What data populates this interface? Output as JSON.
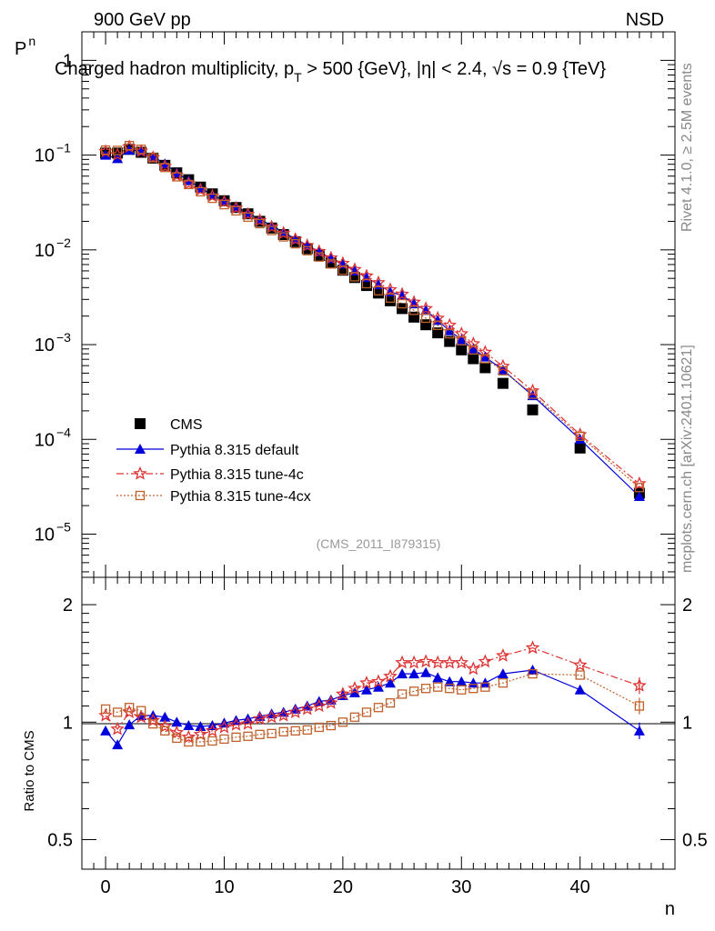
{
  "header": {
    "left": "900 GeV pp",
    "right": "NSD",
    "title": "Charged hadron multiplicity, p",
    "title_sub": "T",
    "title_rest": " > 500 {GeV}, |η| < 2.4, √s = 0.9 {TeV}",
    "analysis_tag": "(CMS_2011_I879315)"
  },
  "side_text": {
    "rivet": "Rivet 4.1.0, ≥ 2.5M events",
    "mcplots": "mcplots.cern.ch [arXiv:2401.10621]"
  },
  "colors": {
    "cms": "#000000",
    "default": "#0000dd",
    "tune4c": "#dd3333",
    "tune4cx": "#c0602a"
  },
  "chart_data": [
    {
      "type": "scatter",
      "title": "Charged hadron multiplicity",
      "xlabel": "n",
      "ylabel": "P",
      "ylabel_sub": "n",
      "yscale": "log",
      "xlim": [
        -2,
        48
      ],
      "ylim": [
        3.5e-06,
        2
      ],
      "ytick_labels": [
        "10",
        "10",
        "10",
        "10",
        "10",
        "1"
      ],
      "ytick_exponents": [
        "−5",
        "−4",
        "−3",
        "−2",
        "−1",
        ""
      ],
      "legend": [
        "CMS",
        "Pythia 8.315 default",
        "Pythia 8.315 tune-4c",
        "Pythia 8.315 tune-4cx"
      ],
      "x": [
        0,
        1,
        2,
        3,
        4,
        5,
        6,
        7,
        8,
        9,
        10,
        11,
        12,
        13,
        14,
        15,
        16,
        17,
        18,
        19,
        20,
        21,
        22,
        23,
        24,
        25,
        26,
        27,
        28,
        29,
        30,
        31,
        32,
        33.5,
        36,
        40,
        45
      ],
      "series": [
        {
          "name": "CMS",
          "values": [
            0.105,
            0.105,
            0.115,
            0.107,
            0.093,
            0.078,
            0.065,
            0.055,
            0.046,
            0.039,
            0.033,
            0.028,
            0.024,
            0.02,
            0.017,
            0.0145,
            0.0122,
            0.0103,
            0.0087,
            0.0073,
            0.0061,
            0.0051,
            0.0042,
            0.0035,
            0.0029,
            0.0024,
            0.00195,
            0.00162,
            0.00133,
            0.00108,
            0.00088,
            0.00071,
            0.00057,
            0.00039,
            0.000205,
            8.1e-05,
            2.7e-05
          ]
        },
        {
          "name": "Pythia 8.315 default",
          "values": [
            0.1,
            0.092,
            0.113,
            0.111,
            0.097,
            0.081,
            0.065,
            0.054,
            0.045,
            0.038,
            0.033,
            0.0285,
            0.0245,
            0.021,
            0.018,
            0.0154,
            0.013,
            0.0112,
            0.0096,
            0.0081,
            0.0071,
            0.006,
            0.0051,
            0.0043,
            0.0036,
            0.0033,
            0.0027,
            0.0023,
            0.0018,
            0.0014,
            0.00113,
            0.0009,
            0.00074,
            0.00054,
            0.00029,
            0.0001,
            2.5e-05
          ]
        },
        {
          "name": "Pythia 8.315 tune-4c",
          "values": [
            0.109,
            0.101,
            0.122,
            0.11,
            0.094,
            0.076,
            0.061,
            0.05,
            0.043,
            0.037,
            0.032,
            0.0276,
            0.0237,
            0.0204,
            0.0174,
            0.015,
            0.0129,
            0.0111,
            0.0096,
            0.0082,
            0.0072,
            0.0062,
            0.0053,
            0.0045,
            0.0038,
            0.0034,
            0.0028,
            0.0024,
            0.0019,
            0.0016,
            0.0013,
            0.00102,
            0.00083,
            0.00059,
            0.000325,
            0.000112,
            3.4e-05
          ]
        },
        {
          "name": "Pythia 8.315 tune-4cx",
          "values": [
            0.113,
            0.112,
            0.126,
            0.115,
            0.094,
            0.074,
            0.059,
            0.049,
            0.041,
            0.035,
            0.03,
            0.0258,
            0.0221,
            0.0189,
            0.016,
            0.0137,
            0.0116,
            0.0098,
            0.0084,
            0.0071,
            0.0061,
            0.0052,
            0.0044,
            0.0037,
            0.0031,
            0.0027,
            0.0023,
            0.0019,
            0.0016,
            0.0013,
            0.0011,
            0.00088,
            0.00071,
            0.00053,
            0.0003,
            0.000108,
            3.1e-05
          ]
        }
      ]
    },
    {
      "type": "scatter",
      "title": "",
      "xlabel": "n",
      "ylabel": "Ratio to CMS",
      "yscale": "log",
      "ylim": [
        0.42,
        2.35
      ],
      "yticks": [
        0.5,
        1,
        2
      ],
      "ytick_labels": [
        "0.5",
        "1",
        "2"
      ],
      "xticks": [
        0,
        10,
        20,
        30,
        40
      ],
      "xtick_labels": [
        "0",
        "10",
        "20",
        "30",
        "40"
      ],
      "x": [
        0,
        1,
        2,
        3,
        4,
        5,
        6,
        7,
        8,
        9,
        10,
        11,
        12,
        13,
        14,
        15,
        16,
        17,
        18,
        19,
        20,
        21,
        22,
        23,
        24,
        25,
        26,
        27,
        28,
        29,
        30,
        31,
        32,
        33.5,
        36,
        40,
        45
      ],
      "series": [
        {
          "name": "Pythia 8.315 default",
          "values": [
            0.95,
            0.875,
            0.985,
            1.04,
            1.04,
            1.03,
            1.0,
            0.98,
            0.975,
            0.98,
            0.995,
            1.01,
            1.02,
            1.035,
            1.05,
            1.06,
            1.08,
            1.1,
            1.13,
            1.14,
            1.17,
            1.19,
            1.21,
            1.23,
            1.26,
            1.33,
            1.33,
            1.34,
            1.3,
            1.27,
            1.27,
            1.26,
            1.26,
            1.33,
            1.36,
            1.21,
            0.95
          ]
        },
        {
          "name": "Pythia 8.315 tune-4c",
          "values": [
            1.04,
            0.96,
            1.06,
            1.03,
            1.01,
            0.975,
            0.94,
            0.915,
            0.93,
            0.95,
            0.97,
            0.985,
            0.99,
            1.02,
            1.03,
            1.04,
            1.06,
            1.08,
            1.1,
            1.12,
            1.18,
            1.22,
            1.26,
            1.27,
            1.31,
            1.42,
            1.42,
            1.43,
            1.42,
            1.42,
            1.42,
            1.37,
            1.43,
            1.48,
            1.55,
            1.4,
            1.24
          ]
        },
        {
          "name": "Pythia 8.315 tune-4cx",
          "values": [
            1.08,
            1.06,
            1.09,
            1.07,
            0.99,
            0.95,
            0.91,
            0.89,
            0.89,
            0.895,
            0.905,
            0.915,
            0.92,
            0.93,
            0.935,
            0.945,
            0.95,
            0.955,
            0.97,
            0.98,
            1.0,
            1.03,
            1.06,
            1.09,
            1.12,
            1.18,
            1.2,
            1.22,
            1.23,
            1.22,
            1.21,
            1.22,
            1.23,
            1.26,
            1.33,
            1.32,
            1.1
          ]
        }
      ]
    }
  ]
}
